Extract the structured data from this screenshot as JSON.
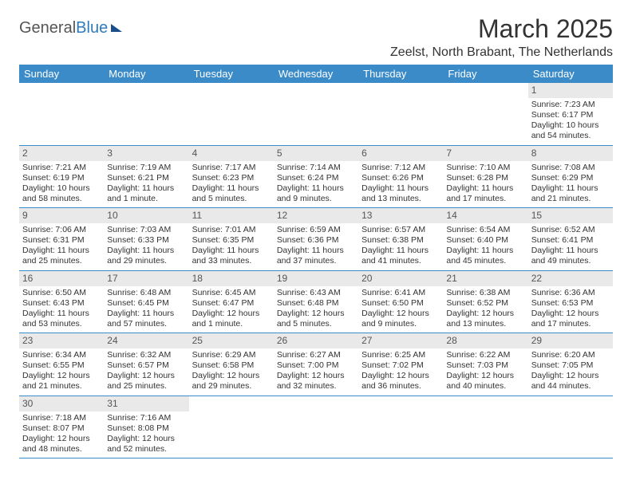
{
  "logo": {
    "word1": "General",
    "word2": "Blue"
  },
  "title": "March 2025",
  "location": "Zeelst, North Brabant, The Netherlands",
  "weekdays": [
    "Sunday",
    "Monday",
    "Tuesday",
    "Wednesday",
    "Thursday",
    "Friday",
    "Saturday"
  ],
  "colors": {
    "header_bg": "#3b8bc9",
    "header_text": "#ffffff",
    "daynum_bg": "#e9e9e9",
    "rule": "#3b8bc9"
  },
  "weeks": [
    [
      null,
      null,
      null,
      null,
      null,
      null,
      {
        "n": "1",
        "sr": "Sunrise: 7:23 AM",
        "ss": "Sunset: 6:17 PM",
        "dl": "Daylight: 10 hours and 54 minutes."
      }
    ],
    [
      {
        "n": "2",
        "sr": "Sunrise: 7:21 AM",
        "ss": "Sunset: 6:19 PM",
        "dl": "Daylight: 10 hours and 58 minutes."
      },
      {
        "n": "3",
        "sr": "Sunrise: 7:19 AM",
        "ss": "Sunset: 6:21 PM",
        "dl": "Daylight: 11 hours and 1 minute."
      },
      {
        "n": "4",
        "sr": "Sunrise: 7:17 AM",
        "ss": "Sunset: 6:23 PM",
        "dl": "Daylight: 11 hours and 5 minutes."
      },
      {
        "n": "5",
        "sr": "Sunrise: 7:14 AM",
        "ss": "Sunset: 6:24 PM",
        "dl": "Daylight: 11 hours and 9 minutes."
      },
      {
        "n": "6",
        "sr": "Sunrise: 7:12 AM",
        "ss": "Sunset: 6:26 PM",
        "dl": "Daylight: 11 hours and 13 minutes."
      },
      {
        "n": "7",
        "sr": "Sunrise: 7:10 AM",
        "ss": "Sunset: 6:28 PM",
        "dl": "Daylight: 11 hours and 17 minutes."
      },
      {
        "n": "8",
        "sr": "Sunrise: 7:08 AM",
        "ss": "Sunset: 6:29 PM",
        "dl": "Daylight: 11 hours and 21 minutes."
      }
    ],
    [
      {
        "n": "9",
        "sr": "Sunrise: 7:06 AM",
        "ss": "Sunset: 6:31 PM",
        "dl": "Daylight: 11 hours and 25 minutes."
      },
      {
        "n": "10",
        "sr": "Sunrise: 7:03 AM",
        "ss": "Sunset: 6:33 PM",
        "dl": "Daylight: 11 hours and 29 minutes."
      },
      {
        "n": "11",
        "sr": "Sunrise: 7:01 AM",
        "ss": "Sunset: 6:35 PM",
        "dl": "Daylight: 11 hours and 33 minutes."
      },
      {
        "n": "12",
        "sr": "Sunrise: 6:59 AM",
        "ss": "Sunset: 6:36 PM",
        "dl": "Daylight: 11 hours and 37 minutes."
      },
      {
        "n": "13",
        "sr": "Sunrise: 6:57 AM",
        "ss": "Sunset: 6:38 PM",
        "dl": "Daylight: 11 hours and 41 minutes."
      },
      {
        "n": "14",
        "sr": "Sunrise: 6:54 AM",
        "ss": "Sunset: 6:40 PM",
        "dl": "Daylight: 11 hours and 45 minutes."
      },
      {
        "n": "15",
        "sr": "Sunrise: 6:52 AM",
        "ss": "Sunset: 6:41 PM",
        "dl": "Daylight: 11 hours and 49 minutes."
      }
    ],
    [
      {
        "n": "16",
        "sr": "Sunrise: 6:50 AM",
        "ss": "Sunset: 6:43 PM",
        "dl": "Daylight: 11 hours and 53 minutes."
      },
      {
        "n": "17",
        "sr": "Sunrise: 6:48 AM",
        "ss": "Sunset: 6:45 PM",
        "dl": "Daylight: 11 hours and 57 minutes."
      },
      {
        "n": "18",
        "sr": "Sunrise: 6:45 AM",
        "ss": "Sunset: 6:47 PM",
        "dl": "Daylight: 12 hours and 1 minute."
      },
      {
        "n": "19",
        "sr": "Sunrise: 6:43 AM",
        "ss": "Sunset: 6:48 PM",
        "dl": "Daylight: 12 hours and 5 minutes."
      },
      {
        "n": "20",
        "sr": "Sunrise: 6:41 AM",
        "ss": "Sunset: 6:50 PM",
        "dl": "Daylight: 12 hours and 9 minutes."
      },
      {
        "n": "21",
        "sr": "Sunrise: 6:38 AM",
        "ss": "Sunset: 6:52 PM",
        "dl": "Daylight: 12 hours and 13 minutes."
      },
      {
        "n": "22",
        "sr": "Sunrise: 6:36 AM",
        "ss": "Sunset: 6:53 PM",
        "dl": "Daylight: 12 hours and 17 minutes."
      }
    ],
    [
      {
        "n": "23",
        "sr": "Sunrise: 6:34 AM",
        "ss": "Sunset: 6:55 PM",
        "dl": "Daylight: 12 hours and 21 minutes."
      },
      {
        "n": "24",
        "sr": "Sunrise: 6:32 AM",
        "ss": "Sunset: 6:57 PM",
        "dl": "Daylight: 12 hours and 25 minutes."
      },
      {
        "n": "25",
        "sr": "Sunrise: 6:29 AM",
        "ss": "Sunset: 6:58 PM",
        "dl": "Daylight: 12 hours and 29 minutes."
      },
      {
        "n": "26",
        "sr": "Sunrise: 6:27 AM",
        "ss": "Sunset: 7:00 PM",
        "dl": "Daylight: 12 hours and 32 minutes."
      },
      {
        "n": "27",
        "sr": "Sunrise: 6:25 AM",
        "ss": "Sunset: 7:02 PM",
        "dl": "Daylight: 12 hours and 36 minutes."
      },
      {
        "n": "28",
        "sr": "Sunrise: 6:22 AM",
        "ss": "Sunset: 7:03 PM",
        "dl": "Daylight: 12 hours and 40 minutes."
      },
      {
        "n": "29",
        "sr": "Sunrise: 6:20 AM",
        "ss": "Sunset: 7:05 PM",
        "dl": "Daylight: 12 hours and 44 minutes."
      }
    ],
    [
      {
        "n": "30",
        "sr": "Sunrise: 7:18 AM",
        "ss": "Sunset: 8:07 PM",
        "dl": "Daylight: 12 hours and 48 minutes."
      },
      {
        "n": "31",
        "sr": "Sunrise: 7:16 AM",
        "ss": "Sunset: 8:08 PM",
        "dl": "Daylight: 12 hours and 52 minutes."
      },
      null,
      null,
      null,
      null,
      null
    ]
  ]
}
